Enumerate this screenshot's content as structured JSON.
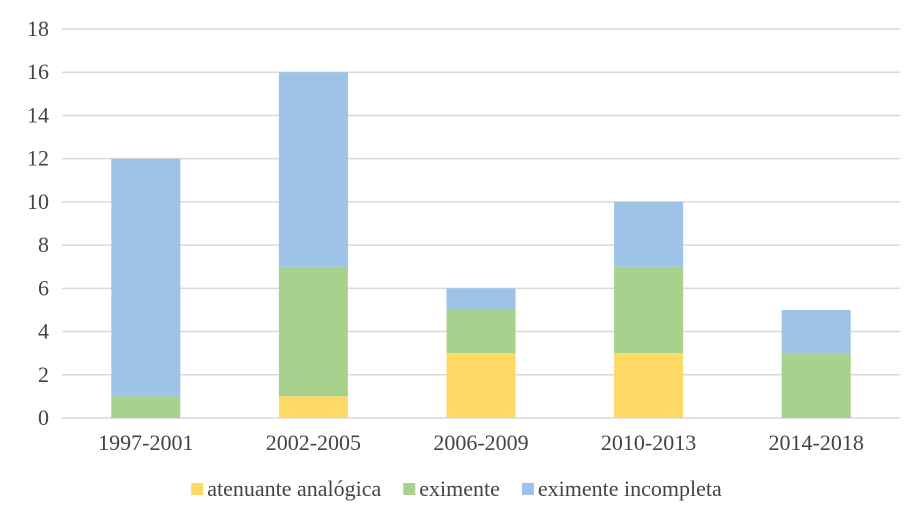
{
  "chart_data": {
    "type": "bar",
    "stacked": true,
    "categories": [
      "1997-2001",
      "2002-2005",
      "2006-2009",
      "2010-2013",
      "2014-2018"
    ],
    "series": [
      {
        "name": "atenuante analógica",
        "color": "#FFD966",
        "values": [
          0,
          1,
          3,
          3,
          0
        ]
      },
      {
        "name": "eximente",
        "color": "#A9D18E",
        "values": [
          1,
          6,
          2,
          4,
          3
        ]
      },
      {
        "name": "eximente incompleta",
        "color": "#9DC3E6",
        "values": [
          11,
          9,
          1,
          3,
          2
        ]
      }
    ],
    "y_ticks": [
      "0",
      "2",
      "4",
      "6",
      "8",
      "10",
      "12",
      "14",
      "16",
      "18"
    ],
    "ylim": [
      0,
      18
    ],
    "grid": true,
    "legend_position": "bottom"
  }
}
